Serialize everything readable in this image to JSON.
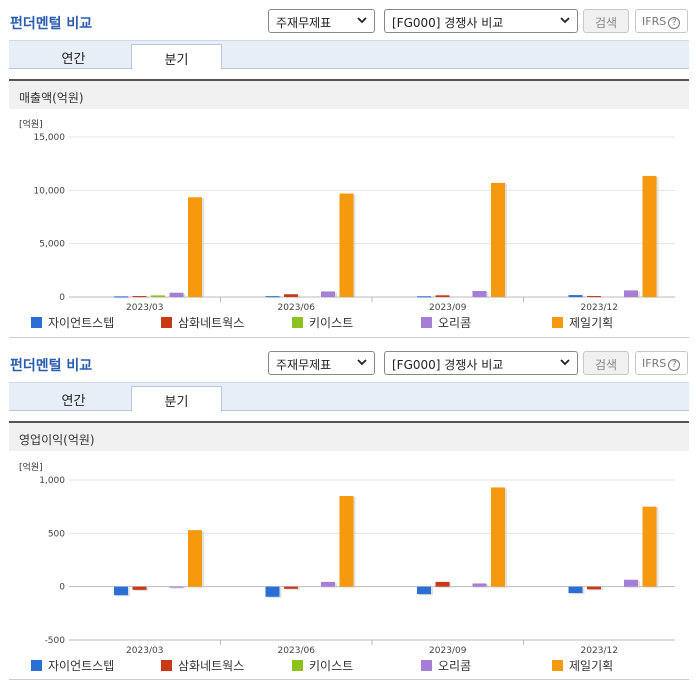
{
  "common": {
    "title": "펀더멘털 비교",
    "select_type": "주재무제표",
    "select_compare": "[FG000] 경쟁사 비교",
    "search_label": "검색",
    "ifrs_label": "IFRS",
    "tabs": [
      "연간",
      "분기"
    ],
    "active_tab": "분기",
    "unit_label": "[억원]"
  },
  "legend": [
    {
      "name": "자이언트스텝",
      "color": "#2b6fd6"
    },
    {
      "name": "삼화네트웍스",
      "color": "#c83a16"
    },
    {
      "name": "키이스트",
      "color": "#8cc21e"
    },
    {
      "name": "오리콤",
      "color": "#a57ed8"
    },
    {
      "name": "제일기획",
      "color": "#f59a0e"
    }
  ],
  "chart_data": [
    {
      "type": "bar",
      "title": "매출액(억원)",
      "ylabel": "[억원]",
      "categories": [
        "2023/03",
        "2023/06",
        "2023/09",
        "2023/12"
      ],
      "ylim": [
        0,
        15000
      ],
      "yticks": [
        "0",
        "5,000",
        "10,000",
        "15,000"
      ],
      "ytick_values": [
        0,
        5000,
        10000,
        15000
      ],
      "series": [
        {
          "name": "자이언트스텝",
          "values": [
            60,
            80,
            70,
            180
          ]
        },
        {
          "name": "삼화네트웍스",
          "values": [
            90,
            260,
            160,
            90
          ]
        },
        {
          "name": "키이스트",
          "values": [
            150,
            0,
            0,
            0
          ]
        },
        {
          "name": "오리콤",
          "values": [
            400,
            520,
            560,
            620
          ]
        },
        {
          "name": "제일기획",
          "values": [
            9350,
            9700,
            10700,
            11350
          ]
        }
      ]
    },
    {
      "type": "bar",
      "title": "영업이익(억원)",
      "ylabel": "[억원]",
      "categories": [
        "2023/03",
        "2023/06",
        "2023/09",
        "2023/12"
      ],
      "ylim": [
        -500,
        1000
      ],
      "yticks": [
        "-500",
        "0",
        "500",
        "1,000"
      ],
      "ytick_values": [
        -500,
        0,
        500,
        1000
      ],
      "series": [
        {
          "name": "자이언트스텝",
          "values": [
            -80,
            -95,
            -70,
            -60
          ]
        },
        {
          "name": "삼화네트웍스",
          "values": [
            -30,
            -20,
            45,
            -25
          ]
        },
        {
          "name": "키이스트",
          "values": [
            0,
            0,
            0,
            0
          ]
        },
        {
          "name": "오리콤",
          "values": [
            -5,
            45,
            30,
            65
          ]
        },
        {
          "name": "제일기획",
          "values": [
            530,
            850,
            930,
            750
          ]
        }
      ]
    }
  ]
}
